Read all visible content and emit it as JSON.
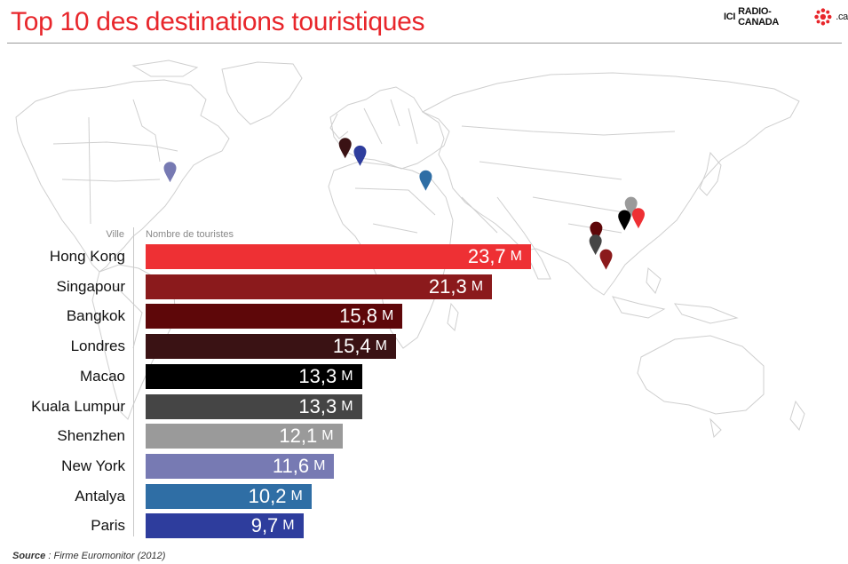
{
  "header": {
    "title": "Top 10 des destinations touristiques",
    "brand_ici": "ICI",
    "brand_name": "RADIO-CANADA",
    "brand_ca": ".ca"
  },
  "chart_header": {
    "ville": "Ville",
    "nombre": "Nombre de touristes"
  },
  "unit": "M",
  "source": {
    "label": "Source",
    "text": ": Firme Euromonitor (2012)"
  },
  "colors": {
    "title": "#e8262b",
    "map_outline": "#c8c8c8"
  },
  "chart_data": {
    "type": "bar",
    "orientation": "horizontal",
    "title": "Top 10 des destinations touristiques",
    "xlabel": "Nombre de touristes",
    "ylabel": "Ville",
    "categories": [
      "Hong Kong",
      "Singapour",
      "Bangkok",
      "Londres",
      "Macao",
      "Kuala Lumpur",
      "Shenzhen",
      "New York",
      "Antalya",
      "Paris"
    ],
    "values": [
      23.7,
      21.3,
      15.8,
      15.4,
      13.3,
      13.3,
      12.1,
      11.6,
      10.2,
      9.7
    ],
    "value_labels": [
      "23,7",
      "21,3",
      "15,8",
      "15,4",
      "13,3",
      "13,3",
      "12,1",
      "11,6",
      "10,2",
      "9,7"
    ],
    "bar_colors": [
      "#ee3034",
      "#8b1a1c",
      "#5e0709",
      "#3a1214",
      "#000000",
      "#454545",
      "#9a9a9a",
      "#777ab3",
      "#2f6ea5",
      "#2e3d9d"
    ],
    "units": "M",
    "grid": false
  },
  "map_pins": [
    {
      "city": "New York",
      "lon": -74.0,
      "lat": 40.7,
      "color": "#777ab3"
    },
    {
      "city": "Londres",
      "lon": -0.1,
      "lat": 51.5,
      "color": "#3a1214"
    },
    {
      "city": "Paris",
      "lon": 2.35,
      "lat": 48.86,
      "color": "#2e3d9d"
    },
    {
      "city": "Antalya",
      "lon": 30.7,
      "lat": 36.9,
      "color": "#2f6ea5"
    },
    {
      "city": "Shenzhen",
      "lon": 114.06,
      "lat": 22.54,
      "color": "#9a9a9a"
    },
    {
      "city": "Hong Kong",
      "lon": 114.17,
      "lat": 22.32,
      "color": "#ee3034"
    },
    {
      "city": "Macao",
      "lon": 113.54,
      "lat": 22.2,
      "color": "#000000"
    },
    {
      "city": "Bangkok",
      "lon": 100.5,
      "lat": 13.75,
      "color": "#5e0709"
    },
    {
      "city": "Kuala Lumpur",
      "lon": 101.69,
      "lat": 3.14,
      "color": "#454545"
    },
    {
      "city": "Singapour",
      "lon": 103.82,
      "lat": 1.35,
      "color": "#8b1a1c"
    }
  ]
}
